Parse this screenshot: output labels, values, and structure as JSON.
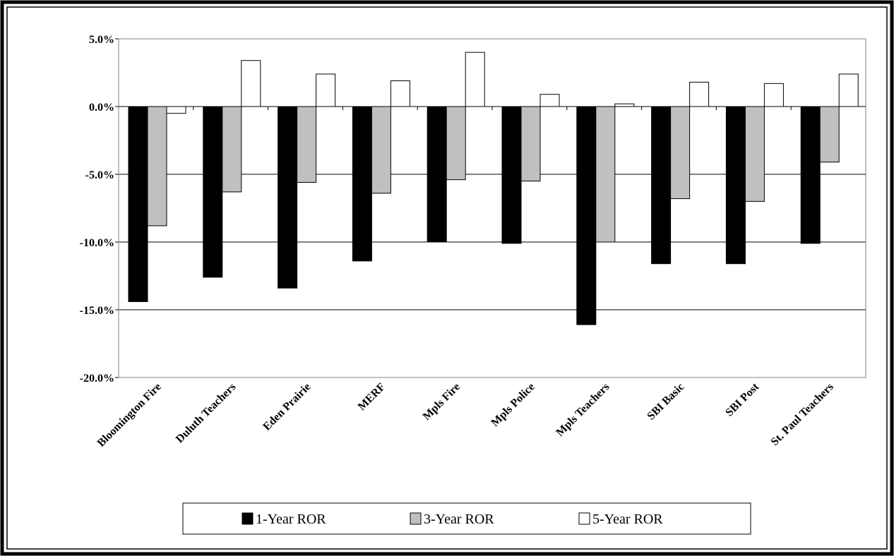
{
  "colors": {
    "series_1": "#000000",
    "series_2": "#c0c0c0",
    "series_3": "#ffffff",
    "grid": "#000000",
    "plot_border": "#808080",
    "frame": "#000000"
  },
  "chart_data": {
    "type": "bar",
    "categories": [
      "Bloomington Fire",
      "Duluth Teachers",
      "Eden Prairie",
      "MERF",
      "Mpls Fire",
      "Mpls Police",
      "Mpls Teachers",
      "SBI Basic",
      "SBI Post",
      "St. Paul Teachers"
    ],
    "series": [
      {
        "name": "1-Year ROR",
        "values": [
          -14.4,
          -12.6,
          -13.4,
          -11.4,
          -10.0,
          -10.1,
          -16.1,
          -11.6,
          -11.6,
          -10.1
        ]
      },
      {
        "name": "3-Year ROR",
        "values": [
          -8.8,
          -6.3,
          -5.6,
          -6.4,
          -5.4,
          -5.5,
          -10.0,
          -6.8,
          -7.0,
          -4.1
        ]
      },
      {
        "name": "5-Year ROR",
        "values": [
          -0.5,
          3.4,
          2.4,
          1.9,
          4.0,
          0.9,
          0.2,
          1.8,
          1.7,
          2.4
        ]
      }
    ],
    "yticks": [
      "5.0%",
      "0.0%",
      "-5.0%",
      "-10.0%",
      "-15.0%",
      "-20.0%"
    ],
    "ytick_values": [
      5,
      0,
      -5,
      -10,
      -15,
      -20
    ],
    "ylim": [
      -20,
      5
    ],
    "grid": true,
    "legend_position": "bottom"
  }
}
